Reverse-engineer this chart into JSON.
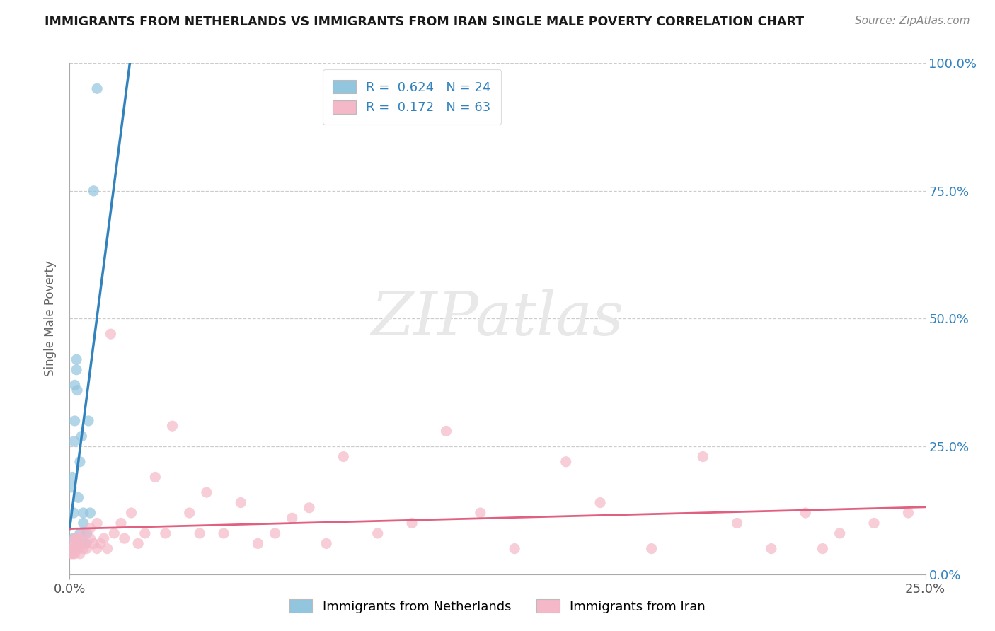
{
  "title": "IMMIGRANTS FROM NETHERLANDS VS IMMIGRANTS FROM IRAN SINGLE MALE POVERTY CORRELATION CHART",
  "source": "Source: ZipAtlas.com",
  "ylabel": "Single Male Poverty",
  "x_min": 0.0,
  "x_max": 0.25,
  "y_min": 0.0,
  "y_max": 1.0,
  "netherlands_R": 0.624,
  "netherlands_N": 24,
  "iran_R": 0.172,
  "iran_N": 63,
  "netherlands_color": "#92c5de",
  "iran_color": "#f4b8c8",
  "netherlands_line_color": "#3182bd",
  "iran_line_color": "#e06080",
  "background_color": "#ffffff",
  "netherlands_x": [
    0.0005,
    0.0008,
    0.001,
    0.001,
    0.0012,
    0.0013,
    0.0015,
    0.0015,
    0.002,
    0.002,
    0.0022,
    0.0025,
    0.003,
    0.003,
    0.003,
    0.0035,
    0.004,
    0.004,
    0.0045,
    0.005,
    0.0055,
    0.006,
    0.007,
    0.008
  ],
  "netherlands_y": [
    0.17,
    0.19,
    0.05,
    0.07,
    0.12,
    0.26,
    0.3,
    0.37,
    0.4,
    0.42,
    0.36,
    0.15,
    0.06,
    0.08,
    0.22,
    0.27,
    0.1,
    0.12,
    0.06,
    0.08,
    0.3,
    0.12,
    0.75,
    0.95
  ],
  "iran_x": [
    0.0005,
    0.0008,
    0.001,
    0.0012,
    0.0013,
    0.0015,
    0.0015,
    0.002,
    0.002,
    0.0022,
    0.0025,
    0.003,
    0.003,
    0.003,
    0.004,
    0.004,
    0.005,
    0.005,
    0.006,
    0.006,
    0.007,
    0.008,
    0.008,
    0.009,
    0.01,
    0.011,
    0.012,
    0.013,
    0.015,
    0.016,
    0.018,
    0.02,
    0.022,
    0.025,
    0.028,
    0.03,
    0.035,
    0.038,
    0.04,
    0.045,
    0.05,
    0.055,
    0.06,
    0.065,
    0.07,
    0.075,
    0.08,
    0.09,
    0.1,
    0.11,
    0.12,
    0.13,
    0.145,
    0.155,
    0.17,
    0.185,
    0.195,
    0.205,
    0.215,
    0.22,
    0.225,
    0.235,
    0.245
  ],
  "iran_y": [
    0.04,
    0.05,
    0.04,
    0.06,
    0.05,
    0.04,
    0.07,
    0.05,
    0.07,
    0.06,
    0.05,
    0.04,
    0.07,
    0.06,
    0.05,
    0.08,
    0.06,
    0.05,
    0.07,
    0.09,
    0.06,
    0.05,
    0.1,
    0.06,
    0.07,
    0.05,
    0.47,
    0.08,
    0.1,
    0.07,
    0.12,
    0.06,
    0.08,
    0.19,
    0.08,
    0.29,
    0.12,
    0.08,
    0.16,
    0.08,
    0.14,
    0.06,
    0.08,
    0.11,
    0.13,
    0.06,
    0.23,
    0.08,
    0.1,
    0.28,
    0.12,
    0.05,
    0.22,
    0.14,
    0.05,
    0.23,
    0.1,
    0.05,
    0.12,
    0.05,
    0.08,
    0.1,
    0.12
  ]
}
